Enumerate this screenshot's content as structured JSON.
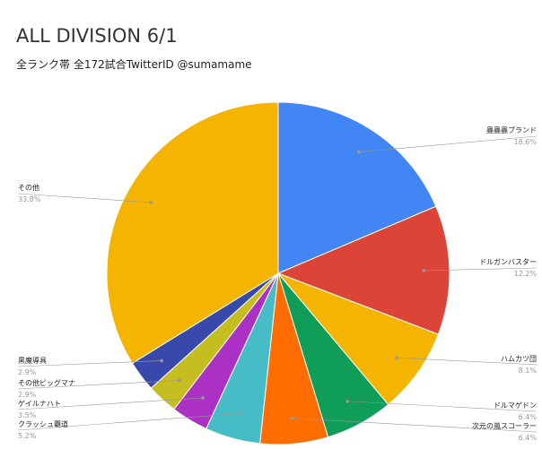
{
  "chart_data": {
    "type": "pie",
    "title": "ALL DIVISION 6/1",
    "subtitle": "全ランク帯 全172試合TwitterID @sumamame",
    "categories": [
      "蟲蟲蟲ブランド",
      "ドルガンバスター",
      "ハムカツ団",
      "ドルマゲドン",
      "次元の嵐スコーラー",
      "クラッシュ覇道",
      "ゲイルナハト",
      "その他ビッグマナ",
      "黒魔導具",
      "その他"
    ],
    "values": [
      18.6,
      12.2,
      8.1,
      6.4,
      6.4,
      5.2,
      3.5,
      2.9,
      2.9,
      33.8
    ],
    "value_labels": [
      "18.6%",
      "12.2%",
      "8.1%",
      "6.4%",
      "6.4%",
      "5.2%",
      "3.5%",
      "2.9%",
      "2.9%",
      "33.8%"
    ],
    "colors": [
      "#4285f4",
      "#db4437",
      "#f4b400",
      "#0f9d58",
      "#ff6d00",
      "#46bdc6",
      "#ab30c4",
      "#c6bd21",
      "#3949ab",
      "#f4b400"
    ]
  }
}
